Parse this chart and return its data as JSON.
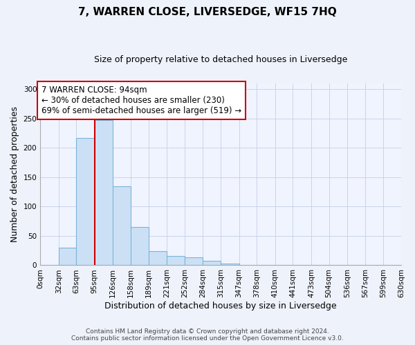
{
  "title": "7, WARREN CLOSE, LIVERSEDGE, WF15 7HQ",
  "subtitle": "Size of property relative to detached houses in Liversedge",
  "xlabel": "Distribution of detached houses by size in Liversedge",
  "ylabel": "Number of detached properties",
  "bar_values": [
    0,
    30,
    217,
    247,
    135,
    65,
    24,
    16,
    13,
    8,
    3,
    0,
    0,
    0,
    0,
    0,
    0,
    0,
    0,
    1
  ],
  "bin_edges": [
    0,
    32,
    63,
    95,
    126,
    158,
    189,
    221,
    252,
    284,
    315,
    347,
    378,
    410,
    441,
    473,
    504,
    536,
    567,
    599,
    630
  ],
  "tick_labels": [
    "0sqm",
    "32sqm",
    "63sqm",
    "95sqm",
    "126sqm",
    "158sqm",
    "189sqm",
    "221sqm",
    "252sqm",
    "284sqm",
    "315sqm",
    "347sqm",
    "378sqm",
    "410sqm",
    "441sqm",
    "473sqm",
    "504sqm",
    "536sqm",
    "567sqm",
    "599sqm",
    "630sqm"
  ],
  "bar_color": "#cce0f5",
  "bar_edge_color": "#7ab4d8",
  "vline_x": 95,
  "vline_color": "#cc0000",
  "annotation_title": "7 WARREN CLOSE: 94sqm",
  "annotation_line1": "← 30% of detached houses are smaller (230)",
  "annotation_line2": "69% of semi-detached houses are larger (519) →",
  "annotation_box_color": "#ffffff",
  "annotation_box_edge": "#cc0000",
  "ylim": [
    0,
    310
  ],
  "yticks": [
    0,
    50,
    100,
    150,
    200,
    250,
    300
  ],
  "footer1": "Contains HM Land Registry data © Crown copyright and database right 2024.",
  "footer2": "Contains public sector information licensed under the Open Government Licence v3.0.",
  "bg_color": "#eef2fa",
  "plot_bg_color": "#f0f4ff",
  "grid_color": "#c8d4e8",
  "title_fontsize": 11,
  "subtitle_fontsize": 9,
  "tick_fontsize": 7.5,
  "label_fontsize": 9
}
